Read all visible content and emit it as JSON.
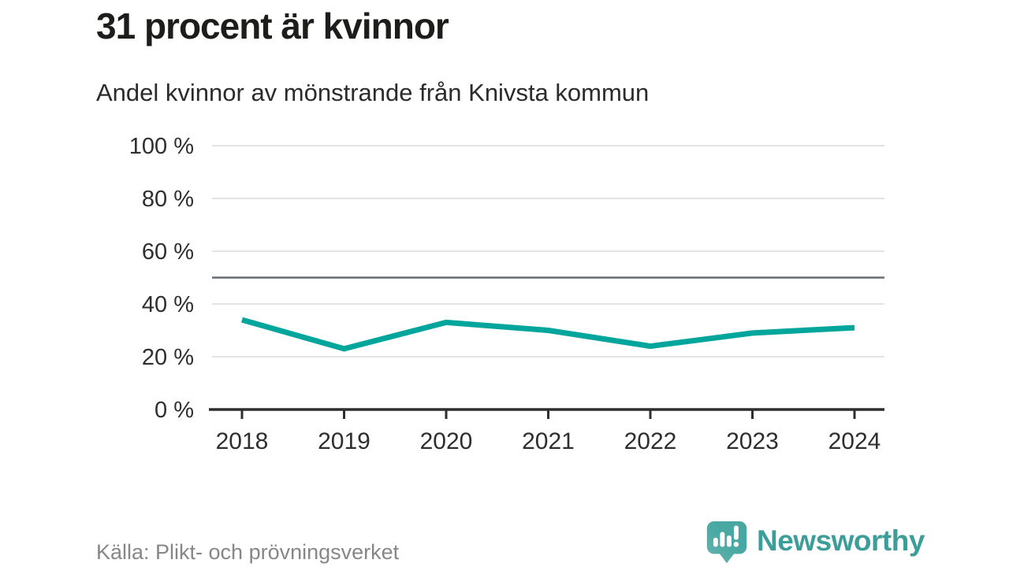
{
  "header": {
    "title": "31 procent är kvinnor",
    "subtitle": "Andel kvinnor av mönstrande från Knivsta kommun"
  },
  "chart_data": {
    "type": "line",
    "title": "Andel kvinnor av mönstrande från Knivsta kommun",
    "categories": [
      "2018",
      "2019",
      "2020",
      "2021",
      "2022",
      "2023",
      "2024"
    ],
    "series": [
      {
        "name": "Andel kvinnor av mönstrande",
        "values": [
          34,
          23,
          33,
          30,
          24,
          29,
          31
        ]
      }
    ],
    "unit": "%",
    "xlabel": "",
    "ylabel": "",
    "ylim": [
      0,
      100
    ],
    "yticks": [
      0,
      20,
      40,
      60,
      80,
      100
    ],
    "ytick_labels": [
      "0 %",
      "20 %",
      "40 %",
      "60 %",
      "80 %",
      "100 %"
    ],
    "reference_line": 50,
    "grid": true,
    "legend": "none",
    "line_color": "#00a59b",
    "grid_color": "#e3e3e3",
    "reference_color": "#676b76",
    "axis_color": "#2e2e2e"
  },
  "footer": {
    "source": "Källa: Plikt- och prövningsverket",
    "brand_name": "Newsworthy",
    "brand_text_color": "#3d9d99",
    "brand_logo_color": "#4caaa4"
  }
}
